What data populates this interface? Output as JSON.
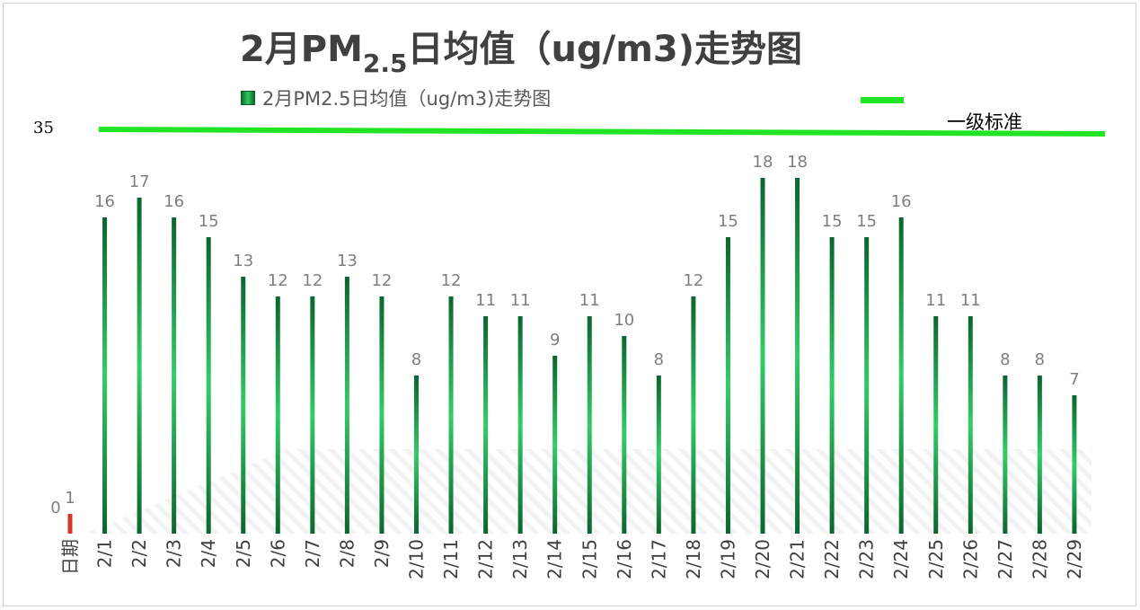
{
  "title": {
    "main": "2月PM",
    "sub": "2.5",
    "rest": "日均值（ug/m3)走势图"
  },
  "legend": {
    "series": "2月PM2.5日均值（ug/m3)走势图"
  },
  "standard": {
    "label": "一级标准",
    "value": "35",
    "color": "#21e524"
  },
  "colors": {
    "bar_dark": "#0c6b32",
    "bar_light": "#31c860",
    "axis_bar": "#d9362b",
    "label": "#7f7f7f"
  },
  "chart_data": {
    "type": "bar",
    "categories": [
      "日期",
      "2/1",
      "2/2",
      "2/3",
      "2/4",
      "2/5",
      "2/6",
      "2/7",
      "2/8",
      "2/9",
      "2/10",
      "2/11",
      "2/12",
      "2/13",
      "2/14",
      "2/15",
      "2/16",
      "2/17",
      "2/18",
      "2/19",
      "2/20",
      "2/21",
      "2/22",
      "2/23",
      "2/24",
      "2/25",
      "2/26",
      "2/27",
      "2/28",
      "2/29"
    ],
    "values": [
      1,
      16,
      17,
      16,
      15,
      13,
      12,
      12,
      13,
      12,
      8,
      12,
      11,
      11,
      9,
      11,
      10,
      8,
      12,
      15,
      18,
      18,
      15,
      15,
      16,
      11,
      11,
      8,
      8,
      7
    ],
    "extra_label": "0",
    "standard_line": 35,
    "legend_position": "top"
  }
}
